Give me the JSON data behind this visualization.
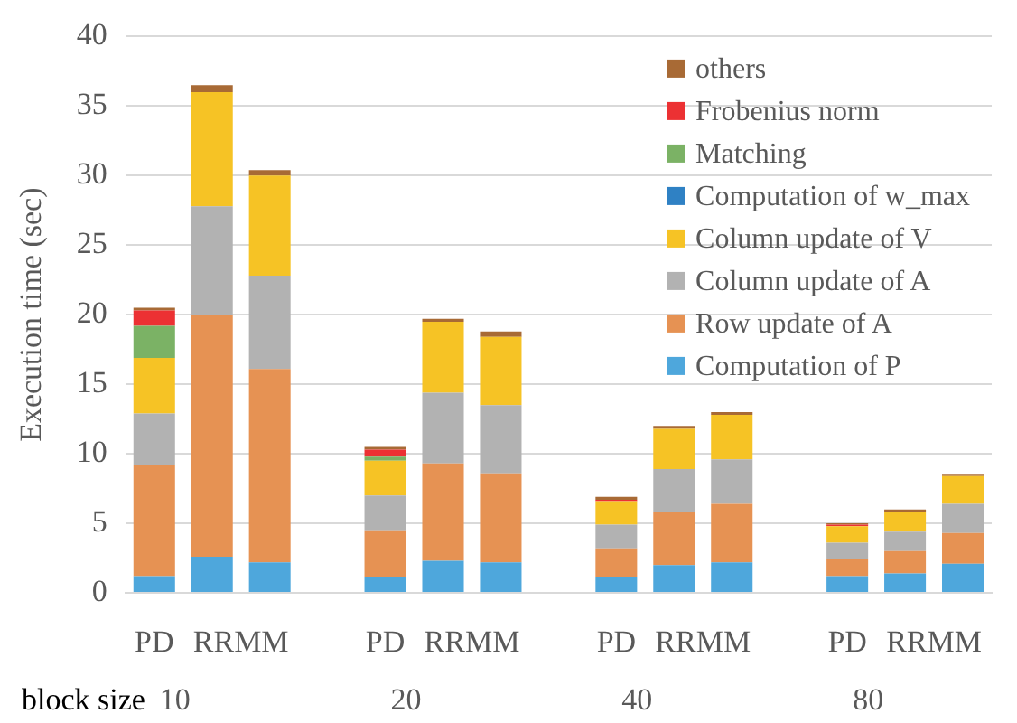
{
  "chart_data": {
    "type": "bar",
    "stacked": true,
    "ylabel": "Execution time (sec)",
    "xlabel": "block size",
    "categories": [
      "PD",
      "RRMM",
      null,
      null,
      "PD",
      "RRMM",
      null,
      null,
      "PD",
      "RRMM",
      null,
      null,
      "PD",
      "RRMM",
      null
    ],
    "annotations": [
      "10",
      "20",
      "40",
      "80"
    ],
    "series": [
      {
        "name": "Computation of P",
        "color": "#4ea7dc",
        "values": [
          1.2,
          2.6,
          2.2,
          null,
          1.1,
          2.3,
          2.2,
          null,
          1.1,
          2.0,
          2.2,
          null,
          1.2,
          1.4,
          2.1
        ]
      },
      {
        "name": "Row update of A",
        "color": "#e69253",
        "values": [
          8.0,
          17.4,
          13.9,
          null,
          3.4,
          7.0,
          6.4,
          null,
          2.1,
          3.8,
          4.2,
          null,
          1.2,
          1.6,
          2.2
        ]
      },
      {
        "name": "Column update of A",
        "color": "#b2b2b2",
        "values": [
          3.7,
          7.8,
          6.7,
          null,
          2.5,
          5.1,
          4.9,
          null,
          1.7,
          3.1,
          3.2,
          null,
          1.2,
          1.4,
          2.1
        ]
      },
      {
        "name": "Column update of V",
        "color": "#f6c325",
        "values": [
          4.0,
          8.2,
          7.2,
          null,
          2.5,
          5.1,
          4.9,
          null,
          1.7,
          2.9,
          3.2,
          null,
          1.2,
          1.4,
          2.0
        ]
      },
      {
        "name": "Computation of w_max",
        "color": "#2f81c4",
        "values": [
          0,
          0,
          0,
          null,
          0,
          0,
          0,
          null,
          0,
          0,
          0,
          null,
          0,
          0,
          0
        ]
      },
      {
        "name": "Matching",
        "color": "#7bb265",
        "values": [
          2.3,
          0,
          0,
          null,
          0.3,
          0,
          0,
          null,
          0,
          0,
          0,
          null,
          0,
          0,
          0
        ]
      },
      {
        "name": "Frobenius norm",
        "color": "#ec3133",
        "values": [
          1.1,
          0,
          0,
          null,
          0.5,
          0,
          0,
          null,
          0.1,
          0,
          0,
          null,
          0.1,
          0,
          0
        ]
      },
      {
        "name": "others",
        "color": "#a86a35",
        "values": [
          0.2,
          0.5,
          0.4,
          null,
          0.2,
          0.2,
          0.4,
          null,
          0.2,
          0.2,
          0.2,
          null,
          0.1,
          0.2,
          0.1
        ]
      }
    ],
    "ylim": [
      0,
      40
    ],
    "yticks": [
      0,
      5,
      10,
      15,
      20,
      25,
      30,
      35,
      40
    ],
    "grid": "y",
    "legend": "top right"
  }
}
